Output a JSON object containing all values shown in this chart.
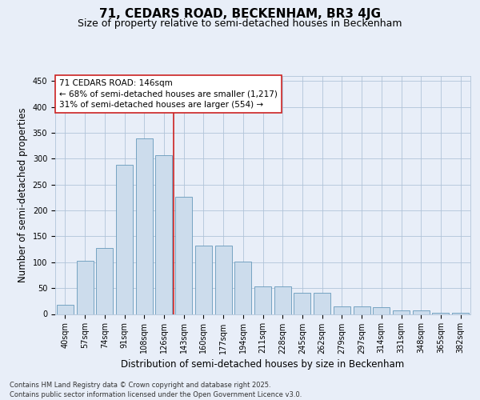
{
  "title": "71, CEDARS ROAD, BECKENHAM, BR3 4JG",
  "subtitle": "Size of property relative to semi-detached houses in Beckenham",
  "xlabel": "Distribution of semi-detached houses by size in Beckenham",
  "ylabel": "Number of semi-detached properties",
  "categories": [
    "40sqm",
    "57sqm",
    "74sqm",
    "91sqm",
    "108sqm",
    "126sqm",
    "143sqm",
    "160sqm",
    "177sqm",
    "194sqm",
    "211sqm",
    "228sqm",
    "245sqm",
    "262sqm",
    "279sqm",
    "297sqm",
    "314sqm",
    "331sqm",
    "348sqm",
    "365sqm",
    "382sqm"
  ],
  "values": [
    18,
    103,
    128,
    288,
    340,
    307,
    227,
    132,
    132,
    101,
    53,
    53,
    41,
    41,
    15,
    15,
    13,
    7,
    7,
    3,
    3
  ],
  "bar_color": "#ccdcec",
  "bar_edge_color": "#6699bb",
  "background_color": "#e8eef8",
  "grid_color": "#b0c4d8",
  "vline_x_idx": 5.5,
  "vline_color": "#cc2222",
  "annotation_line1": "71 CEDARS ROAD: 146sqm",
  "annotation_line2": "← 68% of semi-detached houses are smaller (1,217)",
  "annotation_line3": "31% of semi-detached houses are larger (554) →",
  "annotation_box_color": "#ffffff",
  "annotation_box_edge": "#cc2222",
  "ylim": [
    0,
    460
  ],
  "yticks": [
    0,
    50,
    100,
    150,
    200,
    250,
    300,
    350,
    400,
    450
  ],
  "footer_text": "Contains HM Land Registry data © Crown copyright and database right 2025.\nContains public sector information licensed under the Open Government Licence v3.0.",
  "title_fontsize": 11,
  "subtitle_fontsize": 9,
  "axis_label_fontsize": 8.5,
  "tick_fontsize": 7,
  "annotation_fontsize": 7.5,
  "footer_fontsize": 6
}
